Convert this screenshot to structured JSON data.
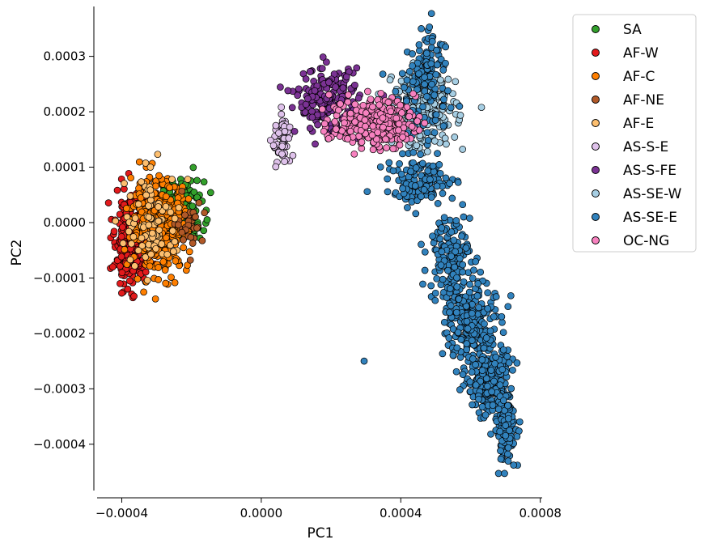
{
  "chart_data": {
    "type": "scatter",
    "title": "",
    "xlabel": "PC1",
    "ylabel": "PC2",
    "xlim": [
      -0.00048,
      0.00081
    ],
    "ylim": [
      -0.000485,
      0.00039
    ],
    "xticks": [
      {
        "value": -0.0004,
        "label": "−0.0004"
      },
      {
        "value": 0.0,
        "label": "0.0000"
      },
      {
        "value": 0.0004,
        "label": "0.0004"
      },
      {
        "value": 0.0008,
        "label": "0.0008"
      }
    ],
    "yticks": [
      {
        "value": 0.0003,
        "label": "0.0003"
      },
      {
        "value": 0.0002,
        "label": "0.0002"
      },
      {
        "value": 0.0001,
        "label": "0.0001"
      },
      {
        "value": 0.0,
        "label": "0.0000"
      },
      {
        "value": -0.0001,
        "label": "−0.0001"
      },
      {
        "value": -0.0002,
        "label": "−0.0002"
      },
      {
        "value": -0.0003,
        "label": "−0.0003"
      },
      {
        "value": -0.0004,
        "label": "−0.0004"
      }
    ],
    "grid": false,
    "legend_position": "outside-top-right",
    "series": [
      {
        "name": "SA",
        "color": "#33a02c",
        "clusters": [
          {
            "cx": -0.000225,
            "cy": 2.5e-05,
            "sx": 3e-05,
            "sy": 2.5e-05,
            "n": 160
          }
        ]
      },
      {
        "name": "AF-W",
        "color": "#e31a1c",
        "clusters": [
          {
            "cx": -0.00037,
            "cy": -3e-05,
            "sx": 2.5e-05,
            "sy": 4e-05,
            "n": 360
          }
        ]
      },
      {
        "name": "AF-C",
        "color": "#ff7f00",
        "clusters": [
          {
            "cx": -0.00029,
            "cy": -5e-06,
            "sx": 4e-05,
            "sy": 4e-05,
            "n": 380
          }
        ]
      },
      {
        "name": "AF-NE",
        "color": "#b15928",
        "clusters": [
          {
            "cx": -0.000205,
            "cy": 0.0,
            "sx": 2e-05,
            "sy": 2e-05,
            "n": 30
          }
        ]
      },
      {
        "name": "AF-E",
        "color": "#fdbf6f",
        "clusters": [
          {
            "cx": -0.00031,
            "cy": 0.0,
            "sx": 4e-05,
            "sy": 4.5e-05,
            "n": 90
          }
        ]
      },
      {
        "name": "AS-S-E",
        "color": "#dfc2eb",
        "clusters": [
          {
            "cx": 6e-05,
            "cy": 0.000145,
            "sx": 1.4e-05,
            "sy": 2.4e-05,
            "n": 60
          }
        ]
      },
      {
        "name": "AS-S-FE",
        "color": "#7b3294",
        "clusters": [
          {
            "cx": 0.00019,
            "cy": 0.00022,
            "sx": 4.5e-05,
            "sy": 2.8e-05,
            "n": 210
          }
        ]
      },
      {
        "name": "AS-SE-W",
        "color": "#a6cee3",
        "clusters": [
          {
            "cx": 0.00047,
            "cy": 0.000205,
            "sx": 4.5e-05,
            "sy": 3.5e-05,
            "n": 260
          }
        ]
      },
      {
        "name": "AS-SE-E",
        "color": "#3182bd",
        "clusters": [
          {
            "cx": 0.00048,
            "cy": 0.0003,
            "sx": 2e-05,
            "sy": 3e-05,
            "n": 60
          },
          {
            "cx": 0.00047,
            "cy": 0.00022,
            "sx": 4e-05,
            "sy": 4e-05,
            "n": 80
          },
          {
            "cx": 0.00046,
            "cy": 7.5e-05,
            "sx": 5e-05,
            "sy": 2e-05,
            "n": 120
          },
          {
            "cx": 0.00054,
            "cy": -6e-05,
            "sx": 3e-05,
            "sy": 4e-05,
            "n": 160
          },
          {
            "cx": 0.0006,
            "cy": -0.00018,
            "sx": 3.5e-05,
            "sy": 4e-05,
            "n": 220
          },
          {
            "cx": 0.00065,
            "cy": -0.00028,
            "sx": 3e-05,
            "sy": 3e-05,
            "n": 260
          },
          {
            "cx": 0.0007,
            "cy": -0.00037,
            "sx": 1.5e-05,
            "sy": 3e-05,
            "n": 140
          }
        ],
        "outliers": [
          [
            0.000295,
            -0.00025
          ]
        ]
      },
      {
        "name": "OC-NG",
        "color": "#f781bf",
        "clusters": [
          {
            "cx": 0.00032,
            "cy": 0.00018,
            "sx": 6e-05,
            "sy": 2.2e-05,
            "n": 260
          }
        ]
      }
    ]
  }
}
